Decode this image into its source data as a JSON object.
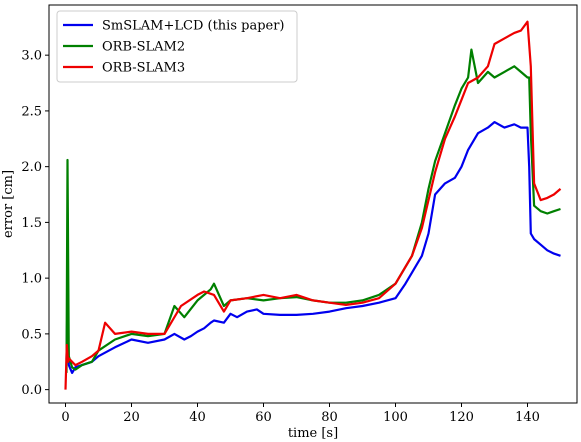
{
  "chart_data": {
    "type": "line",
    "title": "",
    "xlabel": "time [s]",
    "ylabel": "error [cm]",
    "xlim": [
      -5,
      155
    ],
    "ylim": [
      -0.12,
      3.45
    ],
    "xticks": [
      0,
      20,
      40,
      60,
      80,
      100,
      120,
      140
    ],
    "yticks": [
      0.0,
      0.5,
      1.0,
      1.5,
      2.0,
      2.5,
      3.0
    ],
    "xtick_labels": [
      "0",
      "20",
      "40",
      "60",
      "80",
      "100",
      "120",
      "140"
    ],
    "ytick_labels": [
      "0.0",
      "0.5",
      "1.0",
      "1.5",
      "2.0",
      "2.5",
      "3.0"
    ],
    "grid": false,
    "legend_position": "top-left",
    "series": [
      {
        "name": "SmSLAM+LCD (this paper)",
        "color": "#0000ee",
        "x": [
          0.3,
          0.6,
          1,
          2,
          3,
          5,
          8,
          10,
          15,
          20,
          25,
          30,
          33,
          36,
          38,
          40,
          42,
          44,
          45,
          48,
          50,
          52,
          55,
          58,
          60,
          65,
          70,
          75,
          80,
          85,
          90,
          95,
          100,
          103,
          105,
          108,
          110,
          112,
          115,
          118,
          120,
          122,
          125,
          128,
          130,
          133,
          136,
          138,
          140,
          140.5,
          141,
          142,
          144,
          146,
          148,
          150
        ],
        "y": [
          0.27,
          0.85,
          0.22,
          0.15,
          0.2,
          0.22,
          0.25,
          0.3,
          0.38,
          0.45,
          0.42,
          0.45,
          0.5,
          0.45,
          0.48,
          0.52,
          0.55,
          0.6,
          0.62,
          0.6,
          0.68,
          0.65,
          0.7,
          0.72,
          0.68,
          0.67,
          0.67,
          0.68,
          0.7,
          0.73,
          0.75,
          0.78,
          0.82,
          0.95,
          1.05,
          1.2,
          1.4,
          1.75,
          1.85,
          1.9,
          2.0,
          2.15,
          2.3,
          2.35,
          2.4,
          2.35,
          2.38,
          2.35,
          2.35,
          2.0,
          1.4,
          1.35,
          1.3,
          1.25,
          1.22,
          1.2
        ]
      },
      {
        "name": "ORB-SLAM2",
        "color": "#008000",
        "x": [
          0.3,
          0.6,
          1,
          2,
          3,
          5,
          8,
          10,
          15,
          20,
          25,
          30,
          33,
          36,
          40,
          42,
          44,
          45,
          48,
          50,
          55,
          60,
          65,
          70,
          75,
          80,
          85,
          90,
          95,
          100,
          105,
          108,
          110,
          112,
          115,
          118,
          120,
          122,
          123,
          125,
          128,
          130,
          133,
          136,
          138,
          140,
          140.5,
          141,
          142,
          144,
          146,
          148,
          150
        ],
        "y": [
          0.15,
          2.06,
          0.3,
          0.2,
          0.18,
          0.22,
          0.25,
          0.35,
          0.45,
          0.5,
          0.48,
          0.5,
          0.75,
          0.65,
          0.8,
          0.85,
          0.9,
          0.95,
          0.75,
          0.8,
          0.82,
          0.8,
          0.82,
          0.83,
          0.8,
          0.78,
          0.78,
          0.8,
          0.85,
          0.95,
          1.2,
          1.5,
          1.8,
          2.05,
          2.3,
          2.55,
          2.7,
          2.8,
          3.05,
          2.75,
          2.85,
          2.8,
          2.85,
          2.9,
          2.85,
          2.8,
          2.8,
          2.3,
          1.65,
          1.6,
          1.58,
          1.6,
          1.62
        ]
      },
      {
        "name": "ORB-SLAM3",
        "color": "#ee0000",
        "x": [
          0,
          0.4,
          0.8,
          1,
          2,
          3,
          5,
          8,
          10,
          12,
          15,
          20,
          25,
          30,
          35,
          40,
          42,
          45,
          48,
          50,
          55,
          60,
          65,
          70,
          75,
          80,
          85,
          90,
          95,
          100,
          105,
          108,
          110,
          112,
          115,
          118,
          120,
          122,
          125,
          128,
          130,
          133,
          136,
          138,
          140,
          141,
          142,
          144,
          146,
          148,
          150
        ],
        "y": [
          0.0,
          0.4,
          0.25,
          0.28,
          0.25,
          0.22,
          0.25,
          0.3,
          0.35,
          0.6,
          0.5,
          0.52,
          0.5,
          0.5,
          0.75,
          0.85,
          0.88,
          0.85,
          0.7,
          0.8,
          0.82,
          0.85,
          0.82,
          0.85,
          0.8,
          0.78,
          0.76,
          0.78,
          0.82,
          0.95,
          1.2,
          1.45,
          1.7,
          1.95,
          2.25,
          2.45,
          2.6,
          2.75,
          2.8,
          2.9,
          3.1,
          3.15,
          3.2,
          3.22,
          3.3,
          2.9,
          1.85,
          1.7,
          1.72,
          1.75,
          1.8
        ]
      }
    ]
  }
}
